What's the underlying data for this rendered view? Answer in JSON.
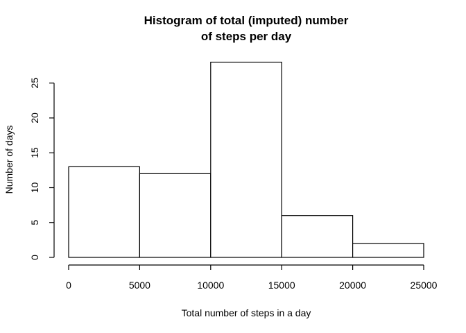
{
  "chart_data": {
    "type": "bar",
    "subtype": "histogram",
    "title_lines": [
      "Histogram of total (imputed) number",
      "of steps per day"
    ],
    "xlabel": "Total number of steps in a day",
    "ylabel": "Number of days",
    "bins": [
      {
        "from": 0,
        "to": 5000,
        "count": 13
      },
      {
        "from": 5000,
        "to": 10000,
        "count": 12
      },
      {
        "from": 10000,
        "to": 15000,
        "count": 28
      },
      {
        "from": 15000,
        "to": 20000,
        "count": 6
      },
      {
        "from": 20000,
        "to": 25000,
        "count": 2
      }
    ],
    "xlim": [
      0,
      25000
    ],
    "ylim": [
      0,
      28
    ],
    "xticks": [
      0,
      5000,
      10000,
      15000,
      20000,
      25000
    ],
    "yticks": [
      0,
      5,
      10,
      15,
      20,
      25
    ],
    "grid": false,
    "bar_fill": "#ffffff",
    "bar_stroke": "#000000"
  }
}
